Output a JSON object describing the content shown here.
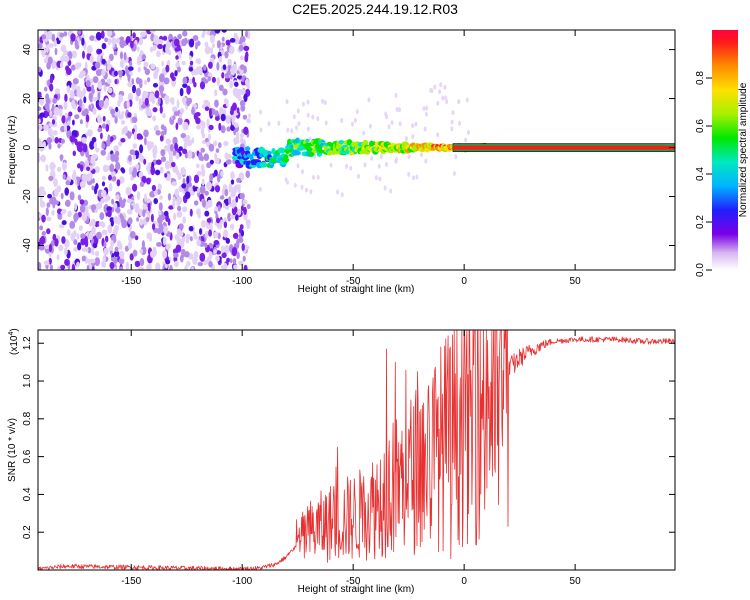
{
  "title": "C2E5.2025.244.19.12.R03",
  "chart_data": [
    {
      "type": "heatmap",
      "name": "spectrogram",
      "xlabel": "Height of straight line (km)",
      "ylabel": "Frequency (Hz)",
      "xlim": [
        -192,
        95
      ],
      "ylim": [
        -50,
        48
      ],
      "xticks": [
        -150,
        -100,
        -50,
        0,
        50
      ],
      "yticks": [
        -40,
        -20,
        0,
        20,
        40
      ],
      "colorbar": {
        "label": "Normalized spectral amplitude",
        "range": [
          0,
          1
        ],
        "ticks": [
          0.0,
          0.2,
          0.4,
          0.6,
          0.8
        ]
      },
      "features": {
        "noise_region_km": [
          -192,
          -97
        ],
        "signal_onset_km": -103,
        "saturated_line_from_km": -5,
        "line_frequency_hz": 0
      }
    },
    {
      "type": "line",
      "name": "snr",
      "xlabel": "Height of straight line (km)",
      "ylabel": "SNR (10 * v/v)",
      "yscale_label": "(x10",
      "yscale_exp": "4",
      "xlim": [
        -192,
        95
      ],
      "ylim": [
        0,
        1.27
      ],
      "xticks": [
        -150,
        -100,
        -50,
        0,
        50
      ],
      "yticks": [
        0.2,
        0.4,
        0.6,
        0.8,
        1.0,
        1.2
      ],
      "color": "#e83030",
      "envelope": {
        "x": [
          -192,
          -180,
          -100,
          -92,
          -85,
          -80,
          -75,
          -70,
          -60,
          -50,
          -45,
          -40,
          -35,
          -30,
          -25,
          -20,
          -15,
          -10,
          -5,
          0,
          5,
          10,
          15,
          20,
          25,
          30,
          35,
          40,
          50,
          60,
          70,
          80,
          95
        ],
        "y": [
          0.005,
          0.02,
          0.005,
          0.01,
          0.03,
          0.07,
          0.14,
          0.2,
          0.25,
          0.28,
          0.3,
          0.35,
          0.42,
          0.45,
          0.5,
          0.55,
          0.6,
          0.66,
          0.72,
          0.78,
          0.85,
          0.93,
          1.0,
          1.06,
          1.12,
          1.16,
          1.19,
          1.21,
          1.22,
          1.22,
          1.22,
          1.21,
          1.21
        ]
      },
      "spikes": [
        {
          "x": -35,
          "y": 1.17
        },
        {
          "x": -31,
          "y": 1.1
        },
        {
          "x": -21,
          "y": 1.05
        },
        {
          "x": -57,
          "y": 0.65
        },
        {
          "x": -6,
          "y": 0.06
        }
      ]
    }
  ]
}
